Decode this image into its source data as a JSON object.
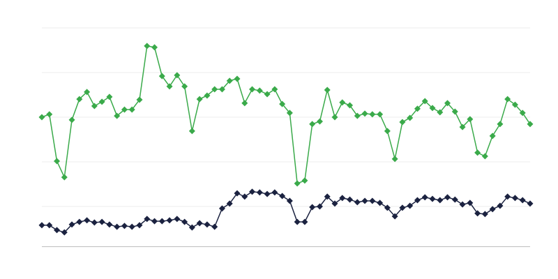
{
  "chart_data": {
    "type": "line",
    "categories": [
      null,
      null,
      null,
      null,
      null,
      null,
      null,
      null,
      null,
      null,
      null,
      null,
      null,
      null,
      null,
      null,
      null,
      null,
      null,
      null,
      null,
      null,
      null,
      null,
      null,
      null,
      null,
      null,
      null,
      null,
      null,
      null,
      null,
      null,
      null,
      null,
      null,
      null,
      null,
      null,
      null,
      null,
      null,
      null,
      null,
      null,
      null,
      null,
      null,
      null,
      null,
      null,
      null,
      null,
      null,
      null,
      null,
      null,
      null,
      null,
      null,
      null,
      null,
      null,
      null,
      null
    ],
    "series": [
      {
        "color": "#3aaa4a",
        "values": [
          60,
          61.3,
          40.3,
          33.1,
          58.8,
          68.1,
          71.3,
          65,
          66.9,
          69.1,
          60.6,
          63.4,
          63.4,
          67.8,
          91.9,
          91.3,
          78.4,
          73.8,
          78.8,
          73.8,
          53.8,
          68.1,
          69.7,
          72.5,
          72.5,
          76.3,
          77.2,
          66.3,
          72.5,
          71.9,
          70.3,
          72.5,
          65.9,
          61.9,
          30.3,
          31.6,
          56.9,
          58.1,
          72.2,
          60,
          66.6,
          65.3,
          60.6,
          61.6,
          61.3,
          61.3,
          53.8,
          41.3,
          57.8,
          59.7,
          63.8,
          67.2,
          64.1,
          62.2,
          66.3,
          62.5,
          55.6,
          59.1,
          44.1,
          42.5,
          51.6,
          56.9,
          68.1,
          65.6,
          61.9,
          56.9
        ]
      },
      {
        "color": "#1b2240",
        "values": [
          11.6,
          11.6,
          9.4,
          8.4,
          11.9,
          13.1,
          13.8,
          12.8,
          13.1,
          11.9,
          10.9,
          11.3,
          10.9,
          11.6,
          14.4,
          13.4,
          13.4,
          13.8,
          14.4,
          13.1,
          10.6,
          12.5,
          11.9,
          10.9,
          19.1,
          21.3,
          25.9,
          24.4,
          26.6,
          26.3,
          25.6,
          26.3,
          24.7,
          22.5,
          13.1,
          13.1,
          19.7,
          20,
          24.4,
          21.3,
          23.8,
          23.1,
          21.9,
          22.5,
          22.5,
          21.6,
          19.4,
          15.6,
          19.4,
          20.3,
          22.8,
          24.1,
          23.4,
          22.8,
          24.1,
          23.1,
          20.9,
          21.6,
          16.9,
          16.6,
          18.8,
          20.3,
          24.4,
          23.8,
          22.8,
          21.3
        ]
      }
    ],
    "ylim": [
      2,
      100
    ],
    "yticks": [
      20,
      40,
      60,
      80,
      100
    ],
    "grid": true
  }
}
